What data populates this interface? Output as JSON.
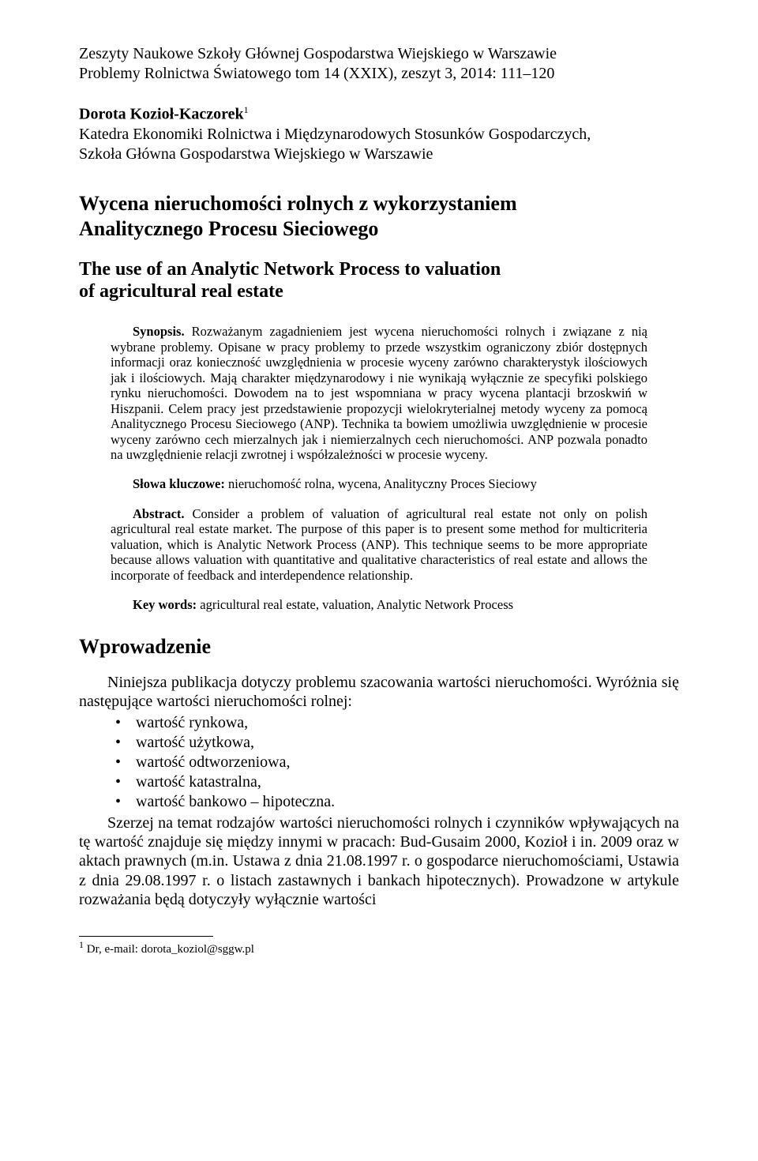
{
  "journal": {
    "line1": "Zeszyty Naukowe Szkoły Głównej Gospodarstwa Wiejskiego w Warszawie",
    "line2": "Problemy Rolnictwa Światowego tom 14 (XXIX), zeszyt 3, 2014: 111–120"
  },
  "author": {
    "name": "Dorota Kozioł-Kaczorek",
    "sup": "1",
    "affil1": "Katedra Ekonomiki Rolnictwa i Międzynarodowych Stosunków Gospodarczych,",
    "affil2": "Szkoła Główna Gospodarstwa Wiejskiego w Warszawie"
  },
  "titles": {
    "pl_l1": "Wycena nieruchomości rolnych z wykorzystaniem",
    "pl_l2": "Analitycznego Procesu Sieciowego",
    "en_l1": "The use of an Analytic Network Process to valuation",
    "en_l2": "of agricultural real estate"
  },
  "synopsis": {
    "label": "Synopsis.",
    "text": " Rozważanym zagadnieniem jest wycena nieruchomości rolnych i związane z nią wybrane problemy. Opisane w pracy problemy to przede wszystkim ograniczony zbiór dostępnych informacji oraz konieczność uwzględnienia w procesie wyceny zarówno charakterystyk ilościowych jak i ilościowych. Mają charakter międzynarodowy i nie wynikają wyłącznie ze specyfiki polskiego rynku nieruchomości. Dowodem na to jest wspomniana w pracy wycena plantacji brzoskwiń w Hiszpanii. Celem pracy jest przedstawienie propozycji wielokryterialnej metody wyceny za pomocą Analitycznego Procesu Sieciowego (ANP). Technika ta bowiem umożliwia uwzględnienie w procesie wyceny zarówno cech mierzalnych jak i niemierzalnych cech nieruchomości. ANP pozwala ponadto na uwzględnienie relacji zwrotnej i współzależności w procesie wyceny."
  },
  "keywords_pl": {
    "label": "Słowa kluczowe:",
    "text": " nieruchomość rolna, wycena, Analityczny Proces Sieciowy"
  },
  "abstract_en": {
    "label": "Abstract.",
    "text": " Consider a problem of valuation of agricultural real estate not only on polish agricultural real estate market. The purpose of this paper is to present some method for multicriteria valuation, which is Analytic Network Process (ANP). This technique seems to be more appropriate because allows valuation with quantitative and qualitative characteristics of real estate and allows the incorporate of feedback and interdependence relationship."
  },
  "keywords_en": {
    "label": "Key words:",
    "text": " agricultural real estate, valuation, Analytic Network Process"
  },
  "intro": {
    "heading": "Wprowadzenie",
    "lead": "Niniejsza publikacja dotyczy problemu szacowania wartości nieruchomości. Wyróżnia się następujące wartości nieruchomości rolnej:",
    "items": [
      "wartość rynkowa,",
      "wartość użytkowa,",
      "wartość odtworzeniowa,",
      "wartość katastralna,",
      "wartość bankowo – hipoteczna."
    ],
    "tail": "Szerzej na temat rodzajów wartości nieruchomości rolnych i czynników wpływających na tę wartość znajduje się między innymi w pracach: Bud-Gusaim 2000, Kozioł i in. 2009 oraz w aktach prawnych (m.in. Ustawa z dnia 21.08.1997 r. o gospodarce nieruchomościami, Ustawia z dnia 29.08.1997 r. o listach zastawnych i bankach hipotecznych). Prowadzone w artykule rozważania będą dotyczyły wyłącznie wartości"
  },
  "footnote": {
    "sup": "1",
    "text": " Dr, e-mail: dorota_koziol@sggw.pl"
  }
}
